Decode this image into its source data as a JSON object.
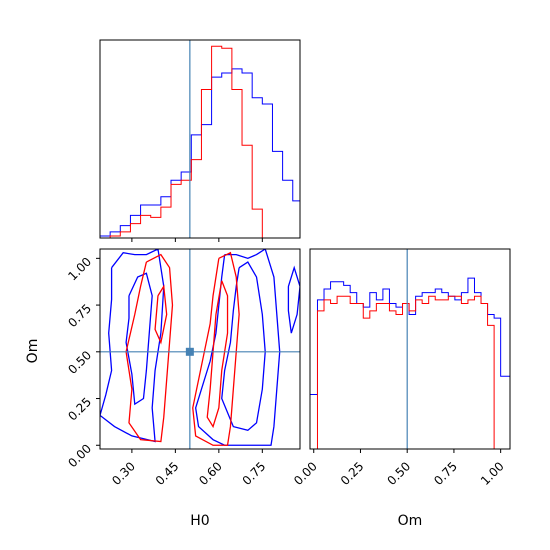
{
  "chart_data": {
    "type": "corner",
    "colors": {
      "series_a": "#0000ff",
      "series_b": "#ff0000",
      "truth": "#4682b4",
      "frame": "#000000"
    },
    "parameters": [
      {
        "key": "H0",
        "label": "H0",
        "range": [
          0.19,
          0.88
        ],
        "ticks": [
          "0.30",
          "0.45",
          "0.60",
          "0.75"
        ],
        "truth": 0.5
      },
      {
        "key": "Om",
        "label": "Om",
        "range": [
          -0.02,
          1.05
        ],
        "ticks": [
          "0.00",
          "0.25",
          "0.50",
          "0.75",
          "1.00"
        ],
        "truth": 0.5
      }
    ],
    "marginals": [
      {
        "parameter": "H0",
        "bin_edges": [
          0.19,
          0.225,
          0.26,
          0.295,
          0.33,
          0.365,
          0.4,
          0.435,
          0.47,
          0.505,
          0.54,
          0.575,
          0.61,
          0.645,
          0.68,
          0.715,
          0.75,
          0.785,
          0.82,
          0.855,
          0.88
        ],
        "series": [
          {
            "color_key": "series_a",
            "values": [
              1,
              3,
              6,
              11,
              16,
              16,
              20,
              28,
              32,
              50,
              55,
              78,
              80,
              82,
              80,
              68,
              65,
              42,
              28,
              18
            ]
          },
          {
            "color_key": "series_b",
            "values": [
              0,
              1,
              3,
              7,
              11,
              10,
              15,
              26,
              28,
              38,
              72,
              93,
              92,
              72,
              45,
              14,
              0,
              0,
              0,
              0
            ]
          }
        ]
      },
      {
        "parameter": "Om",
        "bin_edges": [
          -0.02,
          0.02,
          0.055,
          0.09,
          0.125,
          0.16,
          0.195,
          0.23,
          0.265,
          0.3,
          0.335,
          0.37,
          0.405,
          0.44,
          0.475,
          0.51,
          0.545,
          0.58,
          0.615,
          0.65,
          0.685,
          0.72,
          0.755,
          0.79,
          0.825,
          0.86,
          0.895,
          0.93,
          0.965,
          1.0,
          1.05
        ],
        "series": [
          {
            "color_key": "series_a",
            "values": [
              30,
              82,
              88,
              92,
              92,
              90,
              86,
              80,
              78,
              86,
              82,
              88,
              80,
              78,
              80,
              74,
              84,
              86,
              86,
              88,
              86,
              84,
              82,
              86,
              94,
              86,
              80,
              74,
              72,
              40
            ]
          },
          {
            "color_key": "series_b",
            "values": [
              0,
              76,
              82,
              80,
              84,
              84,
              80,
              80,
              72,
              76,
              80,
              80,
              76,
              74,
              80,
              76,
              82,
              80,
              84,
              82,
              82,
              84,
              84,
              80,
              82,
              84,
              80,
              68,
              0,
              0
            ]
          }
        ]
      }
    ],
    "joint": {
      "x": "H0",
      "y": "Om",
      "contours": [
        {
          "color_key": "series_a",
          "points": [
            [
              0.23,
              0.95
            ],
            [
              0.27,
              1.03
            ],
            [
              0.31,
              1.02
            ],
            [
              0.35,
              1.02
            ],
            [
              0.39,
              1.05
            ],
            [
              0.41,
              0.85
            ],
            [
              0.4,
              0.6
            ],
            [
              0.38,
              0.4
            ],
            [
              0.37,
              0.2
            ],
            [
              0.38,
              0.02
            ],
            [
              0.3,
              0.05
            ],
            [
              0.24,
              0.1
            ],
            [
              0.19,
              0.16
            ],
            [
              0.21,
              0.27
            ],
            [
              0.23,
              0.4
            ],
            [
              0.22,
              0.6
            ],
            [
              0.23,
              0.78
            ],
            [
              0.23,
              0.95
            ]
          ]
        },
        {
          "color_key": "series_a",
          "points": [
            [
              0.29,
              0.8
            ],
            [
              0.32,
              0.9
            ],
            [
              0.35,
              0.92
            ],
            [
              0.37,
              0.8
            ],
            [
              0.36,
              0.6
            ],
            [
              0.35,
              0.4
            ],
            [
              0.34,
              0.25
            ],
            [
              0.31,
              0.22
            ],
            [
              0.3,
              0.38
            ],
            [
              0.28,
              0.55
            ],
            [
              0.29,
              0.68
            ],
            [
              0.29,
              0.8
            ]
          ]
        },
        {
          "color_key": "series_a",
          "points": [
            [
              0.62,
              1.02
            ],
            [
              0.66,
              1.02
            ],
            [
              0.7,
              1.0
            ],
            [
              0.73,
              1.02
            ],
            [
              0.76,
              1.05
            ],
            [
              0.79,
              0.9
            ],
            [
              0.8,
              0.7
            ],
            [
              0.81,
              0.5
            ],
            [
              0.8,
              0.3
            ],
            [
              0.79,
              0.1
            ],
            [
              0.78,
              0.0
            ],
            [
              0.7,
              0.0
            ],
            [
              0.62,
              0.0
            ],
            [
              0.58,
              0.03
            ],
            [
              0.53,
              0.1
            ],
            [
              0.52,
              0.2
            ],
            [
              0.54,
              0.3
            ],
            [
              0.57,
              0.45
            ],
            [
              0.59,
              0.6
            ],
            [
              0.6,
              0.75
            ],
            [
              0.61,
              0.9
            ],
            [
              0.62,
              1.02
            ]
          ]
        },
        {
          "color_key": "series_a",
          "points": [
            [
              0.67,
              0.95
            ],
            [
              0.7,
              0.98
            ],
            [
              0.73,
              0.9
            ],
            [
              0.75,
              0.7
            ],
            [
              0.76,
              0.5
            ],
            [
              0.75,
              0.3
            ],
            [
              0.73,
              0.12
            ],
            [
              0.7,
              0.08
            ],
            [
              0.65,
              0.1
            ],
            [
              0.61,
              0.25
            ],
            [
              0.62,
              0.4
            ],
            [
              0.64,
              0.55
            ],
            [
              0.65,
              0.72
            ],
            [
              0.66,
              0.85
            ],
            [
              0.67,
              0.95
            ]
          ]
        },
        {
          "color_key": "series_a",
          "points": [
            [
              0.84,
              0.85
            ],
            [
              0.86,
              0.95
            ],
            [
              0.88,
              0.85
            ],
            [
              0.87,
              0.7
            ],
            [
              0.85,
              0.6
            ],
            [
              0.84,
              0.72
            ],
            [
              0.84,
              0.85
            ]
          ]
        },
        {
          "color_key": "series_b",
          "points": [
            [
              0.35,
              0.98
            ],
            [
              0.4,
              1.02
            ],
            [
              0.43,
              0.95
            ],
            [
              0.44,
              0.75
            ],
            [
              0.43,
              0.55
            ],
            [
              0.42,
              0.35
            ],
            [
              0.41,
              0.15
            ],
            [
              0.4,
              0.02
            ],
            [
              0.33,
              0.03
            ],
            [
              0.29,
              0.12
            ],
            [
              0.3,
              0.3
            ],
            [
              0.28,
              0.5
            ],
            [
              0.31,
              0.7
            ],
            [
              0.33,
              0.85
            ],
            [
              0.35,
              0.98
            ]
          ]
        },
        {
          "color_key": "series_b",
          "points": [
            [
              0.39,
              0.8
            ],
            [
              0.41,
              0.85
            ],
            [
              0.42,
              0.7
            ],
            [
              0.4,
              0.55
            ],
            [
              0.38,
              0.62
            ],
            [
              0.39,
              0.8
            ]
          ]
        },
        {
          "color_key": "series_b",
          "points": [
            [
              0.6,
              1.0
            ],
            [
              0.64,
              1.03
            ],
            [
              0.66,
              0.9
            ],
            [
              0.67,
              0.7
            ],
            [
              0.66,
              0.5
            ],
            [
              0.65,
              0.3
            ],
            [
              0.64,
              0.1
            ],
            [
              0.63,
              0.0
            ],
            [
              0.58,
              0.0
            ],
            [
              0.52,
              0.05
            ],
            [
              0.51,
              0.2
            ],
            [
              0.53,
              0.35
            ],
            [
              0.55,
              0.5
            ],
            [
              0.57,
              0.65
            ],
            [
              0.58,
              0.8
            ],
            [
              0.6,
              1.0
            ]
          ]
        },
        {
          "color_key": "series_b",
          "points": [
            [
              0.61,
              0.88
            ],
            [
              0.63,
              0.8
            ],
            [
              0.63,
              0.6
            ],
            [
              0.61,
              0.4
            ],
            [
              0.6,
              0.2
            ],
            [
              0.58,
              0.1
            ],
            [
              0.56,
              0.15
            ],
            [
              0.57,
              0.3
            ],
            [
              0.58,
              0.5
            ],
            [
              0.59,
              0.7
            ],
            [
              0.61,
              0.88
            ]
          ]
        }
      ]
    }
  }
}
